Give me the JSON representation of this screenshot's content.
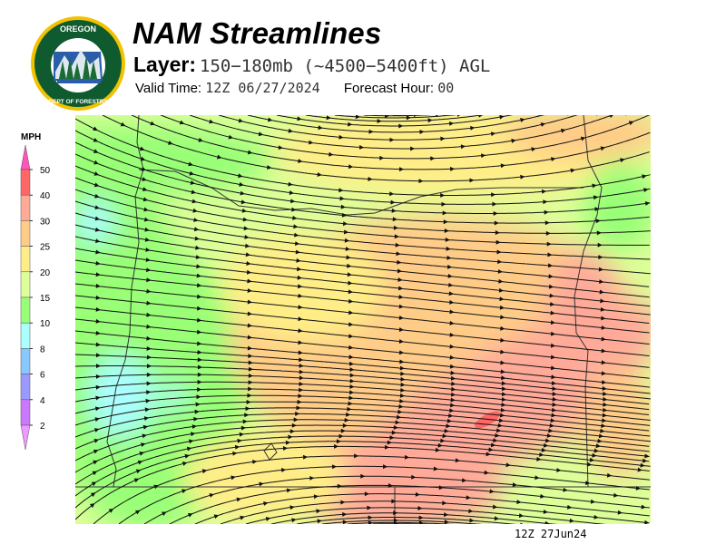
{
  "header": {
    "title": "NAM Streamlines",
    "layer_label": "Layer:",
    "layer_value": "150−180mb (~4500−5400ft) AGL",
    "valid_label": "Valid Time:",
    "valid_value": "12Z 06/27/2024",
    "forecast_label": "Forecast Hour:",
    "forecast_value": "00"
  },
  "logo": {
    "text_top": "OREGON",
    "text_bottom": "DEPARTMENT OF FORESTRY"
  },
  "legend": {
    "unit": "MPH",
    "labels": [
      "50",
      "40",
      "30",
      "25",
      "20",
      "15",
      "10",
      "8",
      "6",
      "4",
      "2"
    ],
    "colors": [
      "#ff6666",
      "#ffaa99",
      "#ffcc88",
      "#ffee88",
      "#ddff99",
      "#99ff77",
      "#aaffff",
      "#88c8ff",
      "#9999ff",
      "#cc77ff"
    ],
    "top_arrow_color": "#ff55bb",
    "bottom_arrow_color": "#ee99ff"
  },
  "footer": {
    "timestamp": "12Z 27Jun24"
  }
}
